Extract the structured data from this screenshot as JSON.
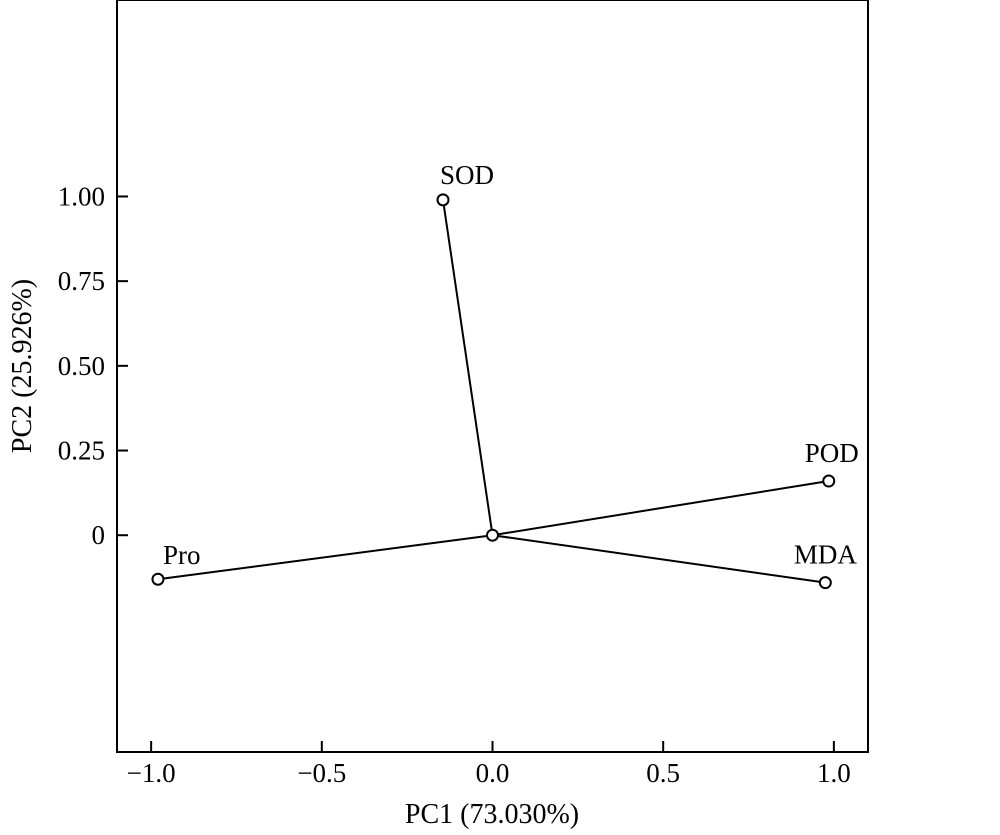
{
  "chart_data": {
    "type": "scatter",
    "subtype": "pca-loading-biplot",
    "xlabel": "PC1 (73.030%)",
    "ylabel": "PC2 (25.926%)",
    "xlim": [
      -1.1,
      1.1
    ],
    "ylim": [
      -0.64,
      1.58
    ],
    "x_ticks": [
      -1.0,
      -0.5,
      0.0,
      0.5,
      1.0
    ],
    "x_tick_labels": [
      "−1.0",
      "−0.5",
      "0.0",
      "0.5",
      "1.0"
    ],
    "y_ticks": [
      0,
      0.25,
      0.5,
      0.75,
      1.0
    ],
    "y_tick_labels": [
      "0",
      "0.25",
      "0.50",
      "0.75",
      "1.00"
    ],
    "grid": false,
    "origin": [
      0,
      0
    ],
    "points": [
      {
        "label": "SOD",
        "x": -0.145,
        "y": 0.99
      },
      {
        "label": "POD",
        "x": 0.985,
        "y": 0.16
      },
      {
        "label": "MDA",
        "x": 0.975,
        "y": -0.14
      },
      {
        "label": "Pro",
        "x": -0.98,
        "y": -0.13
      }
    ],
    "line_color": "#000000",
    "marker": "open-circle"
  }
}
